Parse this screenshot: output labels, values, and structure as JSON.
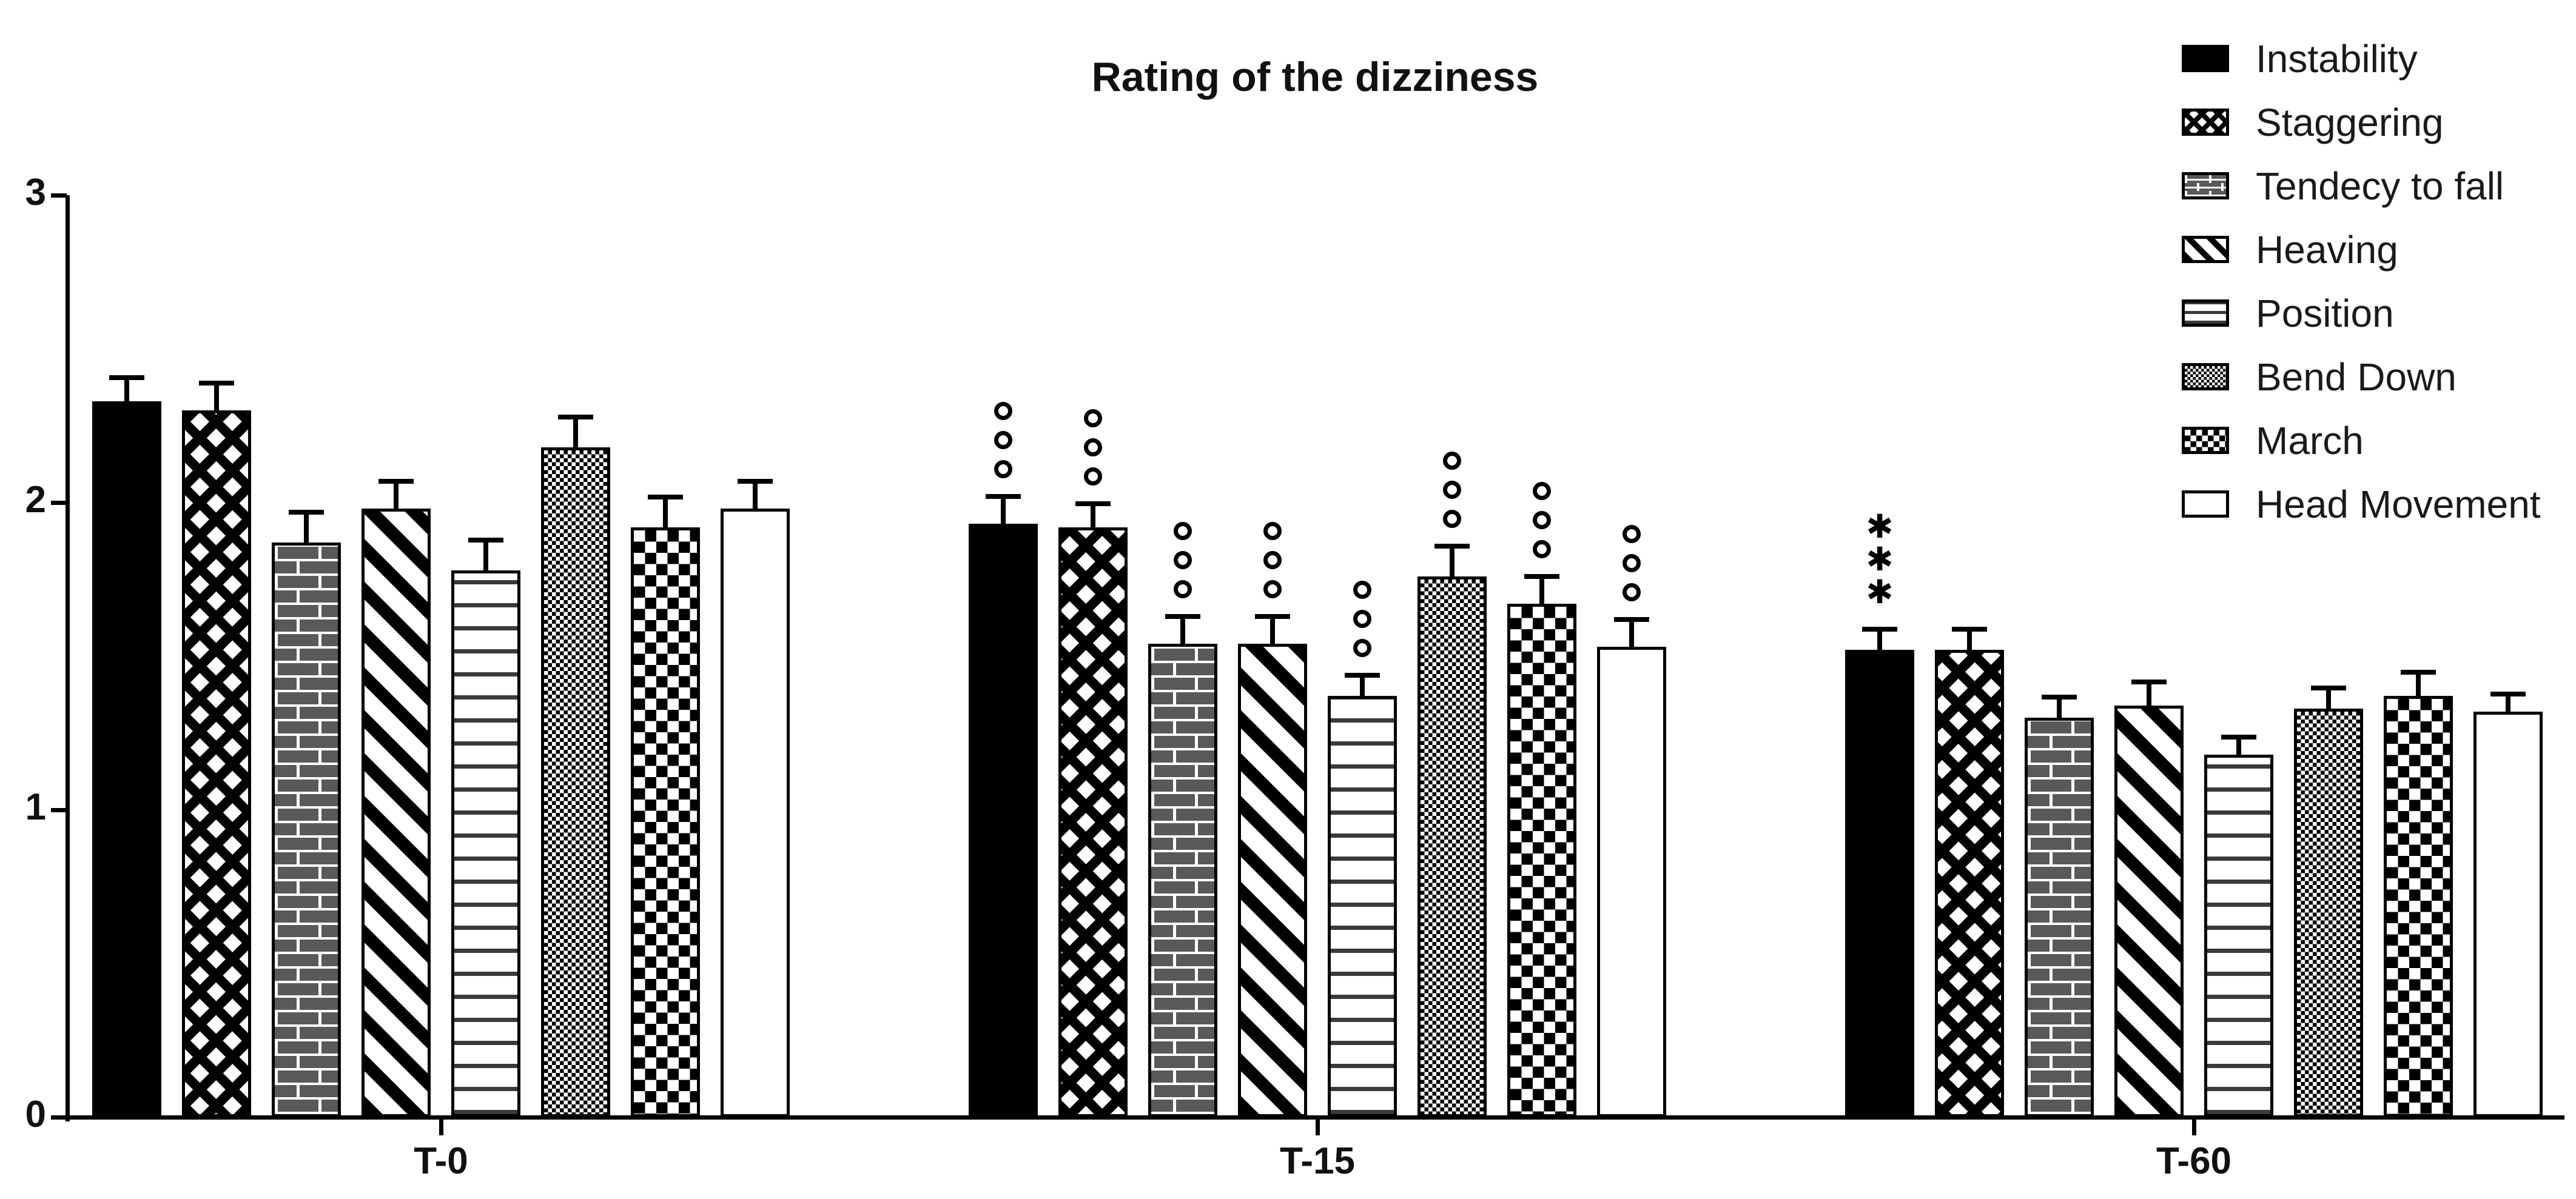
{
  "title": "Rating of the dizziness",
  "y_axis": {
    "tick_labels": [
      "0",
      "1",
      "2",
      "3"
    ],
    "min": 0,
    "max": 3
  },
  "x_axis": {
    "category_labels": [
      "T-0",
      "T-15",
      "T-60"
    ]
  },
  "significance_markers": {
    "circles": "ooo",
    "asterisks": "***"
  },
  "chart_data": {
    "type": "bar",
    "title": "Rating of the dizziness",
    "xlabel": "",
    "ylabel": "",
    "ylim": [
      0,
      3
    ],
    "yticks": [
      0,
      1,
      2,
      3
    ],
    "grid": false,
    "legend_position": "top-right",
    "categories": [
      "T-0",
      "T-15",
      "T-60"
    ],
    "series": [
      {
        "name": "Instability",
        "pattern": "solid-black",
        "values": [
          2.33,
          1.93,
          1.52
        ],
        "errors": [
          0.07,
          0.08,
          0.06
        ],
        "annotations": [
          "",
          "ooo",
          "***"
        ]
      },
      {
        "name": "Staggering",
        "pattern": "diamond-net",
        "values": [
          2.3,
          1.92,
          1.52
        ],
        "errors": [
          0.08,
          0.07,
          0.06
        ],
        "annotations": [
          "",
          "ooo",
          ""
        ]
      },
      {
        "name": "Tendecy to fall",
        "pattern": "brick",
        "values": [
          1.87,
          1.54,
          1.3
        ],
        "errors": [
          0.09,
          0.08,
          0.06
        ],
        "annotations": [
          "",
          "ooo",
          ""
        ]
      },
      {
        "name": "Heaving",
        "pattern": "diagonal-stripes",
        "values": [
          1.98,
          1.54,
          1.34
        ],
        "errors": [
          0.08,
          0.08,
          0.07
        ],
        "annotations": [
          "",
          "ooo",
          ""
        ]
      },
      {
        "name": "Position",
        "pattern": "horizontal-lines",
        "values": [
          1.78,
          1.37,
          1.18
        ],
        "errors": [
          0.09,
          0.06,
          0.05
        ],
        "annotations": [
          "",
          "ooo",
          ""
        ]
      },
      {
        "name": "Bend Down",
        "pattern": "dot-grid",
        "values": [
          2.18,
          1.76,
          1.33
        ],
        "errors": [
          0.09,
          0.09,
          0.06
        ],
        "annotations": [
          "",
          "ooo",
          ""
        ]
      },
      {
        "name": "March",
        "pattern": "checkerboard",
        "values": [
          1.92,
          1.67,
          1.37
        ],
        "errors": [
          0.09,
          0.08,
          0.07
        ],
        "annotations": [
          "",
          "ooo",
          ""
        ]
      },
      {
        "name": "Head Movement",
        "pattern": "open-white",
        "values": [
          1.98,
          1.53,
          1.32
        ],
        "errors": [
          0.08,
          0.08,
          0.05
        ],
        "annotations": [
          "",
          "ooo",
          ""
        ]
      }
    ]
  }
}
